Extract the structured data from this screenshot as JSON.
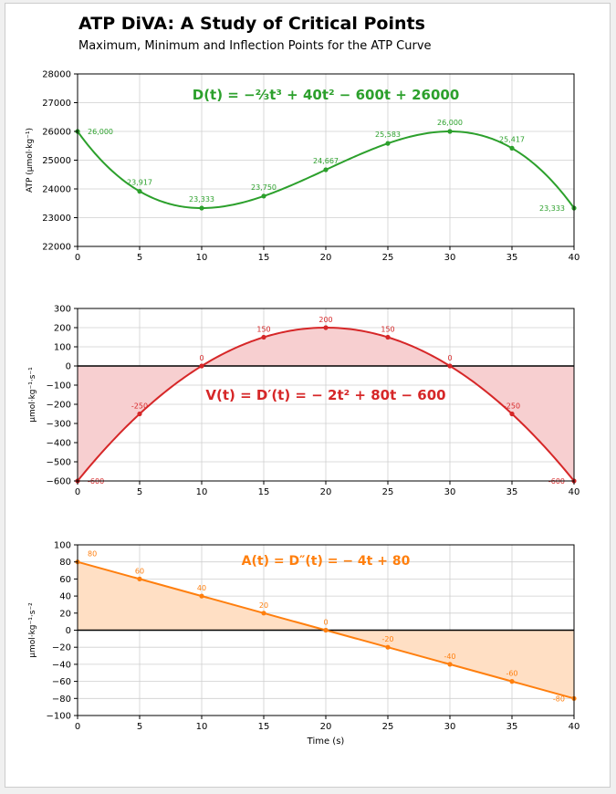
{
  "title": "ATP DiVA: A Study of Critical Points",
  "subtitle": "Maximum, Minimum and Inflection Points for the ATP Curve",
  "chart_data": [
    {
      "id": "d",
      "type": "line",
      "formula_label": "D(t) = −⅔t³ + 40t² − 600t + 26000",
      "coefficients": [
        -0.6666667,
        40,
        -600,
        26000
      ],
      "ylabel": "ATP (µmol·kg⁻¹)",
      "xlabel": "",
      "xlim": [
        0,
        40
      ],
      "ylim": [
        22000,
        28000
      ],
      "xticks": [
        0,
        5,
        10,
        15,
        20,
        25,
        30,
        35,
        40
      ],
      "yticks": [
        22000,
        23000,
        24000,
        25000,
        26000,
        27000,
        28000
      ],
      "points_x": [
        0,
        5,
        10,
        15,
        20,
        25,
        30,
        35,
        40
      ],
      "points_y": [
        26000,
        23917,
        23333,
        23750,
        24667,
        25583,
        26000,
        25417,
        23333
      ],
      "point_labels": [
        "26,000",
        "23,917",
        "23,333",
        "23,750",
        "24,667",
        "25,583",
        "26,000",
        "25,417",
        "23,333"
      ],
      "color": "#2ca02c",
      "fill": false
    },
    {
      "id": "v",
      "type": "area",
      "formula_label": "V(t) = D′(t) = − 2t² + 80t − 600",
      "coefficients": [
        -2,
        80,
        -600
      ],
      "ylabel": "µmol·kg⁻¹·s⁻¹",
      "xlabel": "",
      "xlim": [
        0,
        40
      ],
      "ylim": [
        -600,
        300
      ],
      "xticks": [
        0,
        5,
        10,
        15,
        20,
        25,
        30,
        35,
        40
      ],
      "yticks": [
        -600,
        -500,
        -400,
        -300,
        -200,
        -100,
        0,
        100,
        200,
        300
      ],
      "points_x": [
        0,
        5,
        10,
        15,
        20,
        25,
        30,
        35,
        40
      ],
      "points_y": [
        -600,
        -250,
        0,
        150,
        200,
        150,
        0,
        -250,
        -600
      ],
      "point_labels": [
        "-600",
        "-250",
        "0",
        "150",
        "200",
        "150",
        "0",
        "-250",
        "-600"
      ],
      "color": "#d62728",
      "fill_color": "#f7cfd0",
      "fill": true
    },
    {
      "id": "a",
      "type": "area",
      "formula_label": "A(t) = D″(t) = − 4t + 80",
      "coefficients": [
        -4,
        80
      ],
      "ylabel": "µmol·kg⁻¹·s⁻²",
      "xlabel": "Time (s)",
      "xlim": [
        0,
        40
      ],
      "ylim": [
        -100,
        100
      ],
      "xticks": [
        0,
        5,
        10,
        15,
        20,
        25,
        30,
        35,
        40
      ],
      "yticks": [
        -100,
        -80,
        -60,
        -40,
        -20,
        0,
        20,
        40,
        60,
        80,
        100
      ],
      "points_x": [
        0,
        5,
        10,
        15,
        20,
        25,
        30,
        35,
        40
      ],
      "points_y": [
        80,
        60,
        40,
        20,
        0,
        -20,
        -40,
        -60,
        -80
      ],
      "point_labels": [
        "80",
        "60",
        "40",
        "20",
        "0",
        "-20",
        "-40",
        "-60",
        "-80"
      ],
      "color": "#ff7f0e",
      "fill_color": "#ffdfc4",
      "fill": true
    }
  ]
}
